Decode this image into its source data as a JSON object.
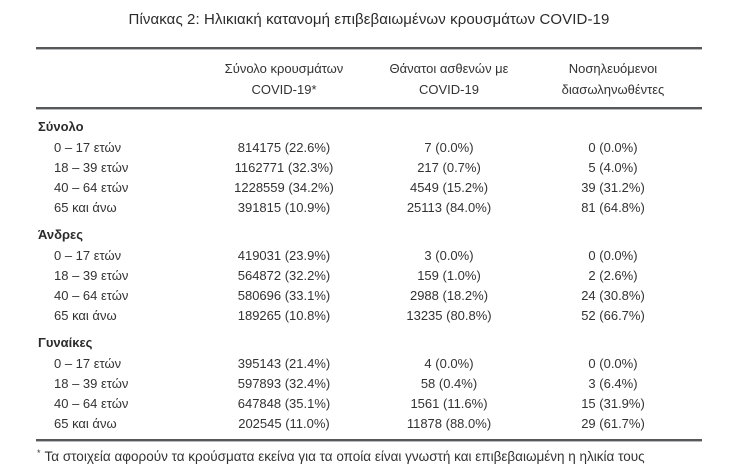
{
  "title": "Πίνακας 2: Ηλικιακή κατανομή επιβεβαιωμένων κρουσμάτων COVID-19",
  "table": {
    "columns": [
      {
        "line1": "Σύνολο κρουσμάτων",
        "line2": "COVID-19*"
      },
      {
        "line1": "Θάνατοι ασθενών με",
        "line2": "COVID-19"
      },
      {
        "line1": "Νοσηλευόμενοι",
        "line2": "διασωληνωθέντες"
      }
    ],
    "sections": [
      {
        "label": "Σύνολο",
        "rows": [
          {
            "age": "0 – 17 ετών",
            "cases": "814175 (22.6%)",
            "deaths": "7 (0.0%)",
            "intubated": "0 (0.0%)"
          },
          {
            "age": "18 – 39 ετών",
            "cases": "1162771 (32.3%)",
            "deaths": "217 (0.7%)",
            "intubated": "5 (4.0%)"
          },
          {
            "age": "40 – 64 ετών",
            "cases": "1228559 (34.2%)",
            "deaths": "4549 (15.2%)",
            "intubated": "39 (31.2%)"
          },
          {
            "age": "65 και άνω",
            "cases": "391815 (10.9%)",
            "deaths": "25113 (84.0%)",
            "intubated": "81 (64.8%)"
          }
        ]
      },
      {
        "label": "Άνδρες",
        "rows": [
          {
            "age": "0 – 17 ετών",
            "cases": "419031 (23.9%)",
            "deaths": "3 (0.0%)",
            "intubated": "0 (0.0%)"
          },
          {
            "age": "18 – 39 ετών",
            "cases": "564872 (32.2%)",
            "deaths": "159 (1.0%)",
            "intubated": "2 (2.6%)"
          },
          {
            "age": "40 – 64 ετών",
            "cases": "580696 (33.1%)",
            "deaths": "2988 (18.2%)",
            "intubated": "24 (30.8%)"
          },
          {
            "age": "65 και άνω",
            "cases": "189265 (10.8%)",
            "deaths": "13235 (80.8%)",
            "intubated": "52 (66.7%)"
          }
        ]
      },
      {
        "label": "Γυναίκες",
        "rows": [
          {
            "age": "0 – 17 ετών",
            "cases": "395143 (21.4%)",
            "deaths": "4 (0.0%)",
            "intubated": "0 (0.0%)"
          },
          {
            "age": "18 – 39 ετών",
            "cases": "597893 (32.4%)",
            "deaths": "58 (0.4%)",
            "intubated": "3 (6.4%)"
          },
          {
            "age": "40 – 64 ετών",
            "cases": "647848 (35.1%)",
            "deaths": "1561 (11.6%)",
            "intubated": "15 (31.9%)"
          },
          {
            "age": "65 και άνω",
            "cases": "202545 (11.0%)",
            "deaths": "11878 (88.0%)",
            "intubated": "29 (61.7%)"
          }
        ]
      }
    ]
  },
  "footnote": {
    "marker": "*",
    "text": "Τα στοιχεία αφορούν τα κρούσματα εκείνα για τα οποία είναι γνωστή και επιβεβαιωμένη η ηλικία τους"
  }
}
